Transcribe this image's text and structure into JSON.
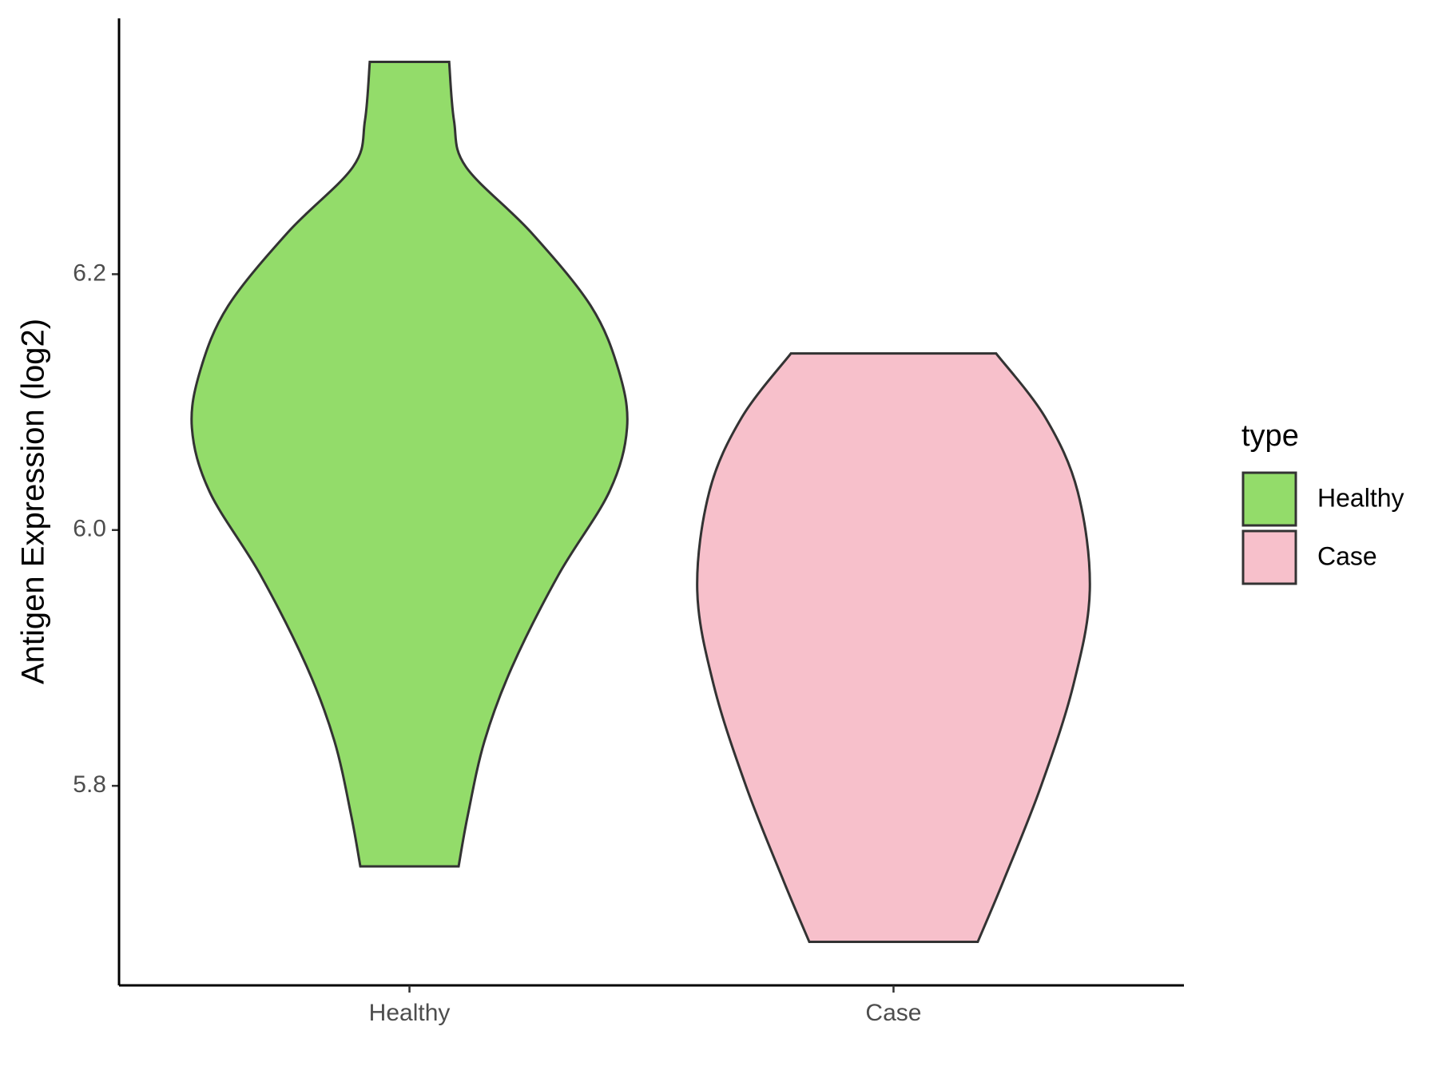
{
  "chart_data": {
    "type": "violin",
    "y_label": "Antigen Expression (log2)",
    "categories": [
      "Healthy",
      "Case"
    ],
    "legend_title": "type",
    "legend_position": "right",
    "ylim": [
      5.644,
      6.4
    ],
    "yticks": [
      5.8,
      {
        "value": 6.0,
        "label": "6.0"
      },
      6.2
    ],
    "series": [
      {
        "name": "Healthy",
        "color": "#93dc6a",
        "y": [
          6.366,
          6.32,
          6.284,
          6.233,
          6.175,
          6.125,
          6.08,
          6.03,
          5.965,
          5.893,
          5.835,
          5.777,
          5.737
        ],
        "width": [
          0.164,
          0.184,
          0.233,
          0.501,
          0.75,
          0.864,
          0.899,
          0.826,
          0.616,
          0.424,
          0.31,
          0.241,
          0.203
        ]
      },
      {
        "name": "Case",
        "color": "#f7c0cb",
        "y": [
          6.138,
          6.088,
          6.03,
          5.953,
          5.878,
          5.799,
          5.726,
          5.678
        ],
        "width": [
          0.424,
          0.627,
          0.761,
          0.811,
          0.742,
          0.608,
          0.455,
          0.348
        ]
      }
    ]
  }
}
